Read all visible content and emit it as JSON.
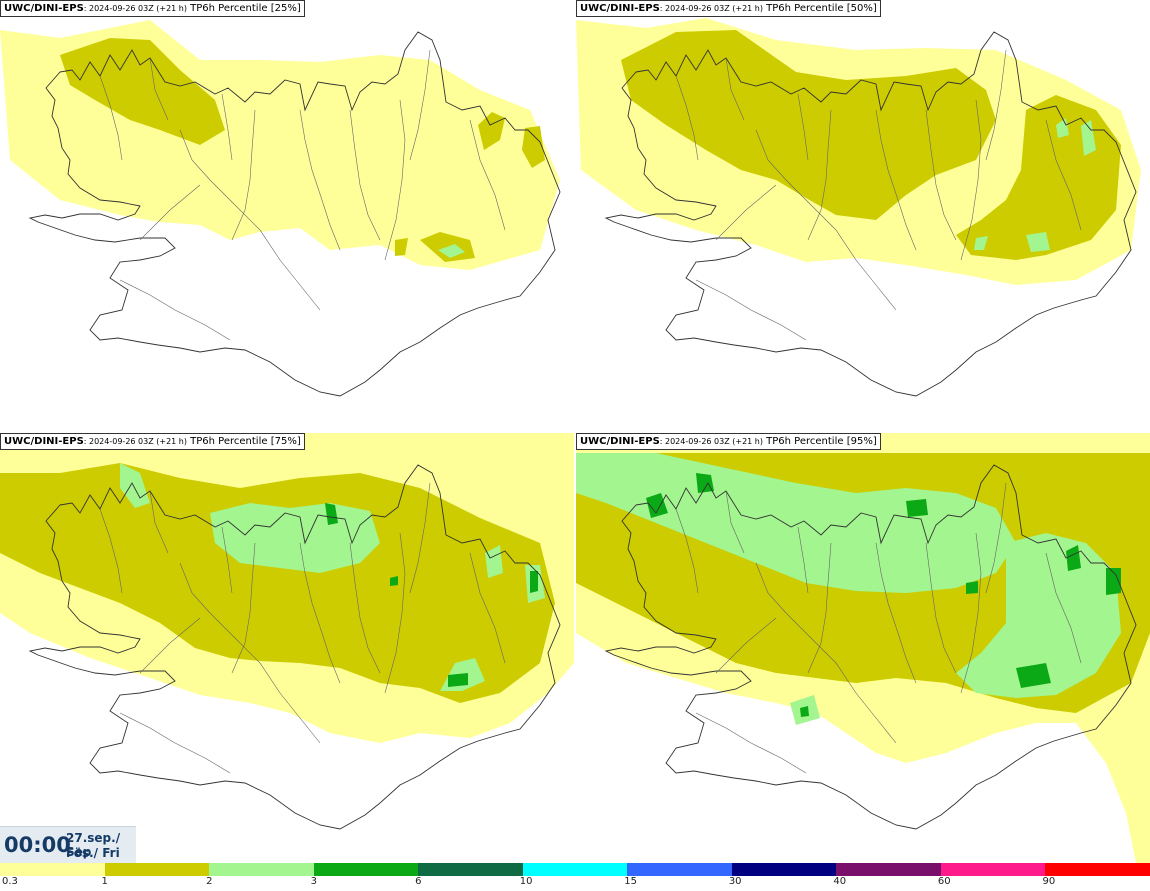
{
  "panels": [
    {
      "model": "UWC/DINI-EPS",
      "datetime": ": 2024-09-26 03Z (+21 h)",
      "label": " TP6h Percentile [25%]",
      "level": 0
    },
    {
      "model": "UWC/DINI-EPS",
      "datetime": ": 2024-09-26 03Z (+21 h)",
      "label": " TP6h Percentile [50%]",
      "level": 1
    },
    {
      "model": "UWC/DINI-EPS",
      "datetime": ": 2024-09-26 03Z (+21 h)",
      "label": " TP6h Percentile [75%]",
      "level": 2
    },
    {
      "model": "UWC/DINI-EPS",
      "datetime": ": 2024-09-26 03Z (+21 h)",
      "label": " TP6h Percentile [95%]",
      "level": 3
    }
  ],
  "time": {
    "hour": "00:00",
    "date_line1": "27.sep./ Sep",
    "date_line2": "Fös./ Fri"
  },
  "colorbar": {
    "colors": [
      "#ffff99",
      "#cccc00",
      "#a3f58f",
      "#0ba915",
      "#0f6b44",
      "#00ffff",
      "#3366ff",
      "#000080",
      "#7a0f6b",
      "#ff1a8c",
      "#ff0000"
    ],
    "ticks": [
      "0.3",
      "1",
      "2",
      "3",
      "6",
      "10",
      "15",
      "30",
      "40",
      "60",
      "90"
    ]
  }
}
